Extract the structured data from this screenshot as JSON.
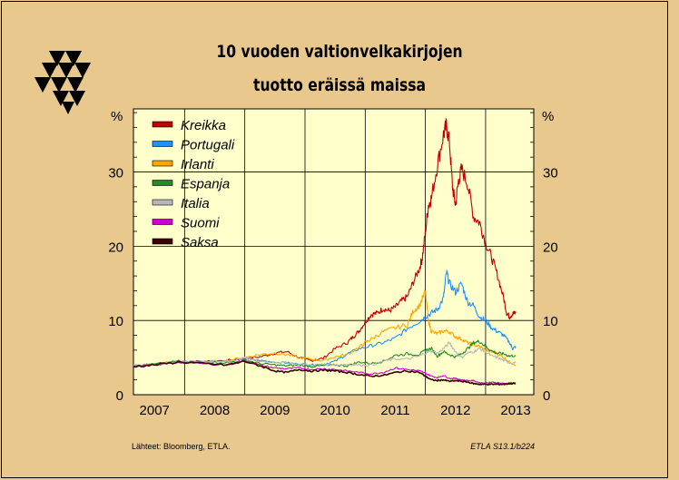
{
  "title_line1": "10 vuoden valtionvelkakirjojen",
  "title_line2": "tuotto eräissä maissa",
  "source_left": "Lähteet:   Bloomberg, ETLA.",
  "source_right": "ETLA S13.1/b224",
  "colors": {
    "background": "#e8c88d",
    "plot_bg": "#ffffcc"
  },
  "chart_data": {
    "type": "line",
    "ylabel_left": "%",
    "ylabel_right": "%",
    "ylim": [
      0,
      38.5
    ],
    "yticks": [
      0,
      10,
      20,
      30
    ],
    "xlim": [
      2006.65,
      2013.3
    ],
    "xticks": [
      2007,
      2008,
      2009,
      2010,
      2011,
      2012,
      2013
    ],
    "xtick_labels": [
      "2007",
      "2008",
      "2009",
      "2010",
      "2011",
      "2012",
      "2013"
    ],
    "legend_position": "top-left",
    "grid": true,
    "series": [
      {
        "name": "Kreikka",
        "color": "#c00000",
        "points": [
          [
            2006.65,
            3.9
          ],
          [
            2007.0,
            4.1
          ],
          [
            2007.4,
            4.5
          ],
          [
            2007.8,
            4.4
          ],
          [
            2008.2,
            4.6
          ],
          [
            2008.5,
            4.9
          ],
          [
            2008.75,
            5.1
          ],
          [
            2009.0,
            5.6
          ],
          [
            2009.2,
            5.8
          ],
          [
            2009.4,
            5.0
          ],
          [
            2009.6,
            4.6
          ],
          [
            2009.8,
            4.9
          ],
          [
            2010.0,
            6.2
          ],
          [
            2010.2,
            7.0
          ],
          [
            2010.3,
            7.8
          ],
          [
            2010.4,
            8.6
          ],
          [
            2010.5,
            9.8
          ],
          [
            2010.6,
            10.8
          ],
          [
            2010.7,
            11.0
          ],
          [
            2010.8,
            11.6
          ],
          [
            2010.9,
            11.3
          ],
          [
            2011.0,
            11.8
          ],
          [
            2011.1,
            12.6
          ],
          [
            2011.2,
            13.2
          ],
          [
            2011.3,
            15.2
          ],
          [
            2011.4,
            17.0
          ],
          [
            2011.45,
            18.5
          ],
          [
            2011.5,
            22.0
          ],
          [
            2011.55,
            25.5
          ],
          [
            2011.6,
            26.5
          ],
          [
            2011.7,
            31.0
          ],
          [
            2011.8,
            35.0
          ],
          [
            2011.85,
            36.2
          ],
          [
            2011.9,
            34.0
          ],
          [
            2011.95,
            28.0
          ],
          [
            2012.0,
            25.5
          ],
          [
            2012.05,
            28.8
          ],
          [
            2012.1,
            30.4
          ],
          [
            2012.2,
            28.5
          ],
          [
            2012.3,
            24.0
          ],
          [
            2012.4,
            23.2
          ],
          [
            2012.5,
            20.5
          ],
          [
            2012.6,
            18.5
          ],
          [
            2012.7,
            16.0
          ],
          [
            2012.8,
            13.0
          ],
          [
            2012.85,
            11.0
          ],
          [
            2012.9,
            10.5
          ],
          [
            2012.95,
            10.9
          ],
          [
            2013.0,
            11.0
          ]
        ]
      },
      {
        "name": "Portugali",
        "color": "#1e90ff",
        "points": [
          [
            2006.65,
            3.9
          ],
          [
            2007.0,
            4.1
          ],
          [
            2007.4,
            4.5
          ],
          [
            2007.8,
            4.4
          ],
          [
            2008.2,
            4.5
          ],
          [
            2008.5,
            4.8
          ],
          [
            2008.75,
            4.6
          ],
          [
            2009.0,
            4.4
          ],
          [
            2009.2,
            4.3
          ],
          [
            2009.4,
            4.1
          ],
          [
            2009.6,
            4.0
          ],
          [
            2009.8,
            4.1
          ],
          [
            2010.0,
            4.5
          ],
          [
            2010.2,
            5.5
          ],
          [
            2010.4,
            6.2
          ],
          [
            2010.6,
            6.6
          ],
          [
            2010.8,
            7.0
          ],
          [
            2011.0,
            7.6
          ],
          [
            2011.2,
            8.9
          ],
          [
            2011.4,
            9.9
          ],
          [
            2011.5,
            10.5
          ],
          [
            2011.6,
            11.0
          ],
          [
            2011.7,
            11.5
          ],
          [
            2011.8,
            13.0
          ],
          [
            2011.85,
            16.5
          ],
          [
            2011.9,
            15.0
          ],
          [
            2012.0,
            13.8
          ],
          [
            2012.1,
            15.0
          ],
          [
            2012.2,
            12.5
          ],
          [
            2012.3,
            12.0
          ],
          [
            2012.4,
            10.5
          ],
          [
            2012.5,
            10.0
          ],
          [
            2012.6,
            9.0
          ],
          [
            2012.7,
            8.5
          ],
          [
            2012.8,
            8.0
          ],
          [
            2012.9,
            7.0
          ],
          [
            2012.95,
            6.2
          ],
          [
            2013.0,
            6.5
          ]
        ]
      },
      {
        "name": "Irlanti",
        "color": "#ffa500",
        "points": [
          [
            2006.65,
            3.9
          ],
          [
            2007.0,
            4.1
          ],
          [
            2007.4,
            4.5
          ],
          [
            2007.8,
            4.4
          ],
          [
            2008.2,
            4.6
          ],
          [
            2008.5,
            5.0
          ],
          [
            2008.75,
            5.4
          ],
          [
            2009.0,
            5.6
          ],
          [
            2009.2,
            5.4
          ],
          [
            2009.4,
            5.0
          ],
          [
            2009.6,
            4.8
          ],
          [
            2009.8,
            4.6
          ],
          [
            2010.0,
            5.1
          ],
          [
            2010.2,
            5.4
          ],
          [
            2010.4,
            6.4
          ],
          [
            2010.5,
            7.0
          ],
          [
            2010.6,
            7.5
          ],
          [
            2010.8,
            8.5
          ],
          [
            2011.0,
            9.0
          ],
          [
            2011.2,
            9.4
          ],
          [
            2011.3,
            11.3
          ],
          [
            2011.4,
            12.0
          ],
          [
            2011.5,
            13.9
          ],
          [
            2011.55,
            10.0
          ],
          [
            2011.6,
            8.5
          ],
          [
            2011.7,
            8.2
          ],
          [
            2011.8,
            8.6
          ],
          [
            2011.9,
            8.5
          ],
          [
            2012.0,
            7.8
          ],
          [
            2012.1,
            7.5
          ],
          [
            2012.2,
            7.0
          ],
          [
            2012.3,
            6.7
          ],
          [
            2012.4,
            6.5
          ],
          [
            2012.5,
            6.0
          ],
          [
            2012.6,
            5.8
          ],
          [
            2012.7,
            5.5
          ],
          [
            2012.8,
            5.0
          ],
          [
            2012.9,
            4.4
          ],
          [
            2013.0,
            4.0
          ]
        ]
      },
      {
        "name": "Espanja",
        "color": "#228b22",
        "points": [
          [
            2006.65,
            3.9
          ],
          [
            2007.0,
            4.1
          ],
          [
            2007.4,
            4.5
          ],
          [
            2007.8,
            4.3
          ],
          [
            2008.2,
            4.3
          ],
          [
            2008.5,
            4.7
          ],
          [
            2008.75,
            4.2
          ],
          [
            2009.0,
            4.0
          ],
          [
            2009.2,
            3.9
          ],
          [
            2009.4,
            4.0
          ],
          [
            2009.6,
            3.8
          ],
          [
            2009.8,
            3.9
          ],
          [
            2010.0,
            4.0
          ],
          [
            2010.2,
            3.9
          ],
          [
            2010.4,
            4.4
          ],
          [
            2010.6,
            4.2
          ],
          [
            2010.8,
            4.5
          ],
          [
            2011.0,
            5.3
          ],
          [
            2011.2,
            5.5
          ],
          [
            2011.4,
            5.4
          ],
          [
            2011.5,
            6.0
          ],
          [
            2011.6,
            6.2
          ],
          [
            2011.7,
            5.2
          ],
          [
            2011.8,
            5.8
          ],
          [
            2011.9,
            5.4
          ],
          [
            2012.0,
            5.1
          ],
          [
            2012.1,
            5.5
          ],
          [
            2012.2,
            6.2
          ],
          [
            2012.3,
            7.0
          ],
          [
            2012.4,
            7.2
          ],
          [
            2012.5,
            6.5
          ],
          [
            2012.6,
            5.9
          ],
          [
            2012.7,
            5.6
          ],
          [
            2012.8,
            5.5
          ],
          [
            2012.9,
            5.2
          ],
          [
            2013.0,
            5.3
          ]
        ]
      },
      {
        "name": "Italia",
        "color": "#b8b8b8",
        "points": [
          [
            2006.65,
            3.9
          ],
          [
            2007.0,
            4.1
          ],
          [
            2007.4,
            4.5
          ],
          [
            2007.8,
            4.4
          ],
          [
            2008.2,
            4.5
          ],
          [
            2008.5,
            4.9
          ],
          [
            2008.75,
            4.5
          ],
          [
            2009.0,
            4.4
          ],
          [
            2009.2,
            4.3
          ],
          [
            2009.4,
            4.1
          ],
          [
            2009.6,
            4.0
          ],
          [
            2009.8,
            4.1
          ],
          [
            2010.0,
            4.0
          ],
          [
            2010.2,
            4.1
          ],
          [
            2010.4,
            4.0
          ],
          [
            2010.6,
            4.0
          ],
          [
            2010.8,
            4.5
          ],
          [
            2011.0,
            4.8
          ],
          [
            2011.2,
            4.8
          ],
          [
            2011.4,
            5.2
          ],
          [
            2011.5,
            5.6
          ],
          [
            2011.6,
            5.9
          ],
          [
            2011.7,
            5.6
          ],
          [
            2011.8,
            6.2
          ],
          [
            2011.9,
            7.0
          ],
          [
            2012.0,
            5.8
          ],
          [
            2012.1,
            5.0
          ],
          [
            2012.2,
            5.6
          ],
          [
            2012.3,
            5.8
          ],
          [
            2012.4,
            6.2
          ],
          [
            2012.5,
            5.8
          ],
          [
            2012.6,
            5.2
          ],
          [
            2012.7,
            5.0
          ],
          [
            2012.8,
            4.6
          ],
          [
            2012.9,
            4.3
          ],
          [
            2013.0,
            4.3
          ]
        ]
      },
      {
        "name": "Suomi",
        "color": "#cc00cc",
        "points": [
          [
            2006.65,
            3.8
          ],
          [
            2007.0,
            4.0
          ],
          [
            2007.4,
            4.4
          ],
          [
            2007.8,
            4.2
          ],
          [
            2008.2,
            4.0
          ],
          [
            2008.5,
            4.6
          ],
          [
            2008.75,
            4.0
          ],
          [
            2009.0,
            3.6
          ],
          [
            2009.2,
            3.5
          ],
          [
            2009.4,
            3.6
          ],
          [
            2009.6,
            3.4
          ],
          [
            2009.8,
            3.5
          ],
          [
            2010.0,
            3.4
          ],
          [
            2010.2,
            3.2
          ],
          [
            2010.4,
            3.0
          ],
          [
            2010.6,
            2.8
          ],
          [
            2010.8,
            3.0
          ],
          [
            2011.0,
            3.6
          ],
          [
            2011.2,
            3.4
          ],
          [
            2011.4,
            3.2
          ],
          [
            2011.5,
            2.9
          ],
          [
            2011.6,
            2.5
          ],
          [
            2011.7,
            2.3
          ],
          [
            2011.8,
            2.6
          ],
          [
            2011.9,
            2.2
          ],
          [
            2012.0,
            2.2
          ],
          [
            2012.1,
            2.0
          ],
          [
            2012.2,
            1.9
          ],
          [
            2012.3,
            1.9
          ],
          [
            2012.4,
            1.6
          ],
          [
            2012.5,
            1.6
          ],
          [
            2012.6,
            1.7
          ],
          [
            2012.7,
            1.6
          ],
          [
            2012.8,
            1.5
          ],
          [
            2012.9,
            1.6
          ],
          [
            2013.0,
            1.6
          ]
        ]
      },
      {
        "name": "Saksa",
        "color": "#3a0000",
        "points": [
          [
            2006.65,
            3.8
          ],
          [
            2007.0,
            4.0
          ],
          [
            2007.4,
            4.4
          ],
          [
            2007.8,
            4.2
          ],
          [
            2008.2,
            4.0
          ],
          [
            2008.5,
            4.5
          ],
          [
            2008.75,
            3.9
          ],
          [
            2009.0,
            3.2
          ],
          [
            2009.2,
            3.0
          ],
          [
            2009.4,
            3.4
          ],
          [
            2009.6,
            3.2
          ],
          [
            2009.8,
            3.3
          ],
          [
            2010.0,
            3.2
          ],
          [
            2010.2,
            3.0
          ],
          [
            2010.4,
            2.7
          ],
          [
            2010.6,
            2.5
          ],
          [
            2010.8,
            2.6
          ],
          [
            2011.0,
            3.0
          ],
          [
            2011.2,
            3.2
          ],
          [
            2011.4,
            3.0
          ],
          [
            2011.5,
            2.5
          ],
          [
            2011.6,
            2.0
          ],
          [
            2011.7,
            1.9
          ],
          [
            2011.8,
            2.0
          ],
          [
            2011.9,
            1.8
          ],
          [
            2012.0,
            1.9
          ],
          [
            2012.1,
            1.8
          ],
          [
            2012.2,
            1.7
          ],
          [
            2012.3,
            1.5
          ],
          [
            2012.4,
            1.4
          ],
          [
            2012.5,
            1.4
          ],
          [
            2012.6,
            1.4
          ],
          [
            2012.7,
            1.4
          ],
          [
            2012.8,
            1.4
          ],
          [
            2012.9,
            1.5
          ],
          [
            2013.0,
            1.5
          ]
        ]
      }
    ]
  }
}
